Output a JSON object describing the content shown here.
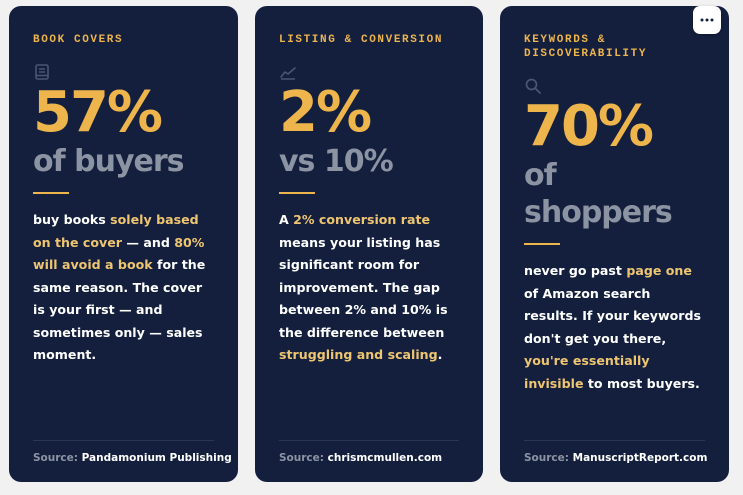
{
  "cards": [
    {
      "title": "BOOK COVERS",
      "icon": "book-icon",
      "stat": "57%",
      "sub_lines": [
        "of buyers"
      ],
      "body": [
        {
          "t": "buy books ",
          "hl": false
        },
        {
          "t": "solely based on the cover",
          "hl": true
        },
        {
          "t": " — and ",
          "hl": false
        },
        {
          "t": "80% will avoid a book",
          "hl": true
        },
        {
          "t": " for the same reason. The cover is your first — and sometimes only — sales moment.",
          "hl": false
        }
      ],
      "source_label": "Source:",
      "source_value": "Pandamonium Publishing"
    },
    {
      "title": "LISTING & CONVERSION",
      "icon": "trend-line-icon",
      "stat": "2%",
      "sub_lines": [
        "vs 10%"
      ],
      "body": [
        {
          "t": "A ",
          "hl": false
        },
        {
          "t": "2% conversion rate",
          "hl": true
        },
        {
          "t": " means your listing has significant room for improvement. The gap between 2% and 10% is the difference between ",
          "hl": false
        },
        {
          "t": "struggling and scaling",
          "hl": true
        },
        {
          "t": ".",
          "hl": false
        }
      ],
      "source_label": "Source:",
      "source_value": "chrismcmullen.com"
    },
    {
      "title": "KEYWORDS & DISCOVERABILITY",
      "icon": "search-icon",
      "stat": "70%",
      "sub_lines": [
        "of",
        "shoppers"
      ],
      "body": [
        {
          "t": "never go past ",
          "hl": false
        },
        {
          "t": "page one",
          "hl": true
        },
        {
          "t": " of Amazon search results. If your keywords don't get you there, ",
          "hl": false
        },
        {
          "t": "you're essentially invisible",
          "hl": true
        },
        {
          "t": " to most buyers.",
          "hl": false
        }
      ],
      "source_label": "Source:",
      "source_value": "ManuscriptReport.com"
    }
  ],
  "more_button": {
    "icon": "more-dots-icon",
    "glyph": "···"
  },
  "colors": {
    "card_bg": "#131f3d",
    "accent": "#eeb54c",
    "highlight": "#eec571",
    "muted": "#8c94a3",
    "page_bg": "#f1f1f2"
  }
}
